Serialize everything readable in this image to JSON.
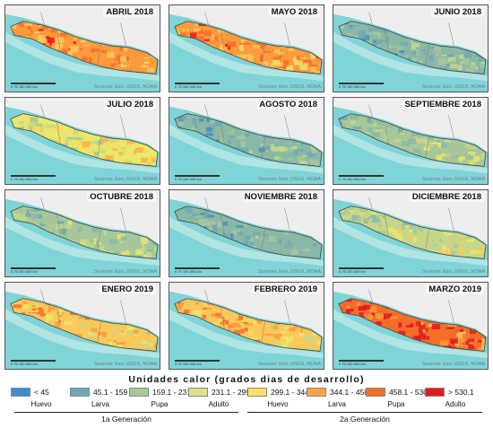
{
  "panels": [
    {
      "title": "ABRIL 2018",
      "palette": [
        "#e31a1c",
        "#f46d2b",
        "#fd9a3c",
        "#fdc85a",
        "#e9e86a"
      ],
      "scale": "0  75  150   300 km",
      "sources": "Sources: Esri, USGS, NOAA"
    },
    {
      "title": "MAYO 2018",
      "palette": [
        "#e31a1c",
        "#f46d2b",
        "#fd9a3c",
        "#fdc85a",
        "#e9e86a"
      ],
      "scale": "0  75  150   300 km",
      "sources": "Sources: Esri, USGS, NOAA"
    },
    {
      "title": "JUNIO 2018",
      "palette": [
        "#4a8fc0",
        "#6fa8b4",
        "#8ab8a6",
        "#a7c79a",
        "#c6d78a"
      ],
      "scale": "0  75  150   300 km",
      "sources": "Sources: Esri, USGS, NOAA"
    },
    {
      "title": "JULIO 2018",
      "palette": [
        "#a7c79a",
        "#c6d78a",
        "#e9e86a",
        "#fdd45c",
        "#f9b04a"
      ],
      "scale": "0  75  150   300 km",
      "sources": "Sources: Esri, USGS, NOAA"
    },
    {
      "title": "AGOSTO 2018",
      "palette": [
        "#4a8fc0",
        "#6fa8b4",
        "#8ab8a6",
        "#a7c79a",
        "#c6d78a"
      ],
      "scale": "0  75  150   300 km",
      "sources": "Sources: Esri, USGS, NOAA"
    },
    {
      "title": "SEPTIEMBRE 2018",
      "palette": [
        "#6fa8b4",
        "#8ab8a6",
        "#a7c79a",
        "#c6d78a",
        "#e9e86a"
      ],
      "scale": "0  75  150   300 km",
      "sources": "Sources: Esri, USGS, NOAA"
    },
    {
      "title": "OCTUBRE 2018",
      "palette": [
        "#6fa8b4",
        "#8ab8a6",
        "#a7c79a",
        "#c6d78a",
        "#e9e86a"
      ],
      "scale": "0  75  150   300 km",
      "sources": "Sources: Esri, USGS, NOAA"
    },
    {
      "title": "NOVIEMBRE 2018",
      "palette": [
        "#4a8fc0",
        "#6fa8b4",
        "#8ab8a6",
        "#a7c79a",
        "#c6d78a"
      ],
      "scale": "0  75  150   300 km",
      "sources": "Sources: Esri, USGS, NOAA"
    },
    {
      "title": "DICIEMBRE 2018",
      "palette": [
        "#8ab8a6",
        "#a7c79a",
        "#c6d78a",
        "#e9e86a",
        "#fdc85a"
      ],
      "scale": "0  75  150   300 km",
      "sources": "Sources: Esri, USGS, NOAA"
    },
    {
      "title": "ENERO 2019",
      "palette": [
        "#f46d2b",
        "#fd9a3c",
        "#fdc85a",
        "#e9e86a",
        "#c6d78a"
      ],
      "scale": "0  75  150   300 km",
      "sources": "Sources: Esri, USGS, NOAA"
    },
    {
      "title": "FEBRERO 2019",
      "palette": [
        "#f46d2b",
        "#fd9a3c",
        "#fdc85a",
        "#e9e86a",
        "#c6d78a"
      ],
      "scale": "0  75  150   300 km",
      "sources": "Sources: Esri, USGS, NOAA"
    },
    {
      "title": "MARZO 2019",
      "palette": [
        "#e31a1c",
        "#e31a1c",
        "#f46d2b",
        "#fd9a3c",
        "#fdc85a"
      ],
      "scale": "0  75  150   300 km",
      "sources": "Sources: Esri, USGS, NOAA"
    }
  ],
  "colors": {
    "ocean_deep": "#7fd4d8",
    "ocean_shallow": "#bde8e6",
    "land": "#eeeeee",
    "border": "#444444"
  },
  "legend": {
    "title": "Unidades calor (grados dias de desarrollo)",
    "classes": [
      {
        "label": "< 45",
        "color": "#3b8fd0"
      },
      {
        "label": "45.1 - 159",
        "color": "#6fa8b4"
      },
      {
        "label": "159.1 - 231",
        "color": "#a7c79a"
      },
      {
        "label": "231.1 - 299",
        "color": "#dbe487"
      },
      {
        "label": "299.1 - 344",
        "color": "#fde069"
      },
      {
        "label": "344.1 - 458",
        "color": "#fba34a"
      },
      {
        "label": "458.1 - 530",
        "color": "#f46d2b"
      },
      {
        "label": "> 530.1",
        "color": "#e31a1c"
      }
    ],
    "stages": [
      "Huevo",
      "Larva",
      "Pupa",
      "Adulto",
      "Huevo",
      "Larva",
      "Pupa",
      "Adulto"
    ],
    "generations": [
      "1a Generación",
      "2a Generación"
    ]
  }
}
